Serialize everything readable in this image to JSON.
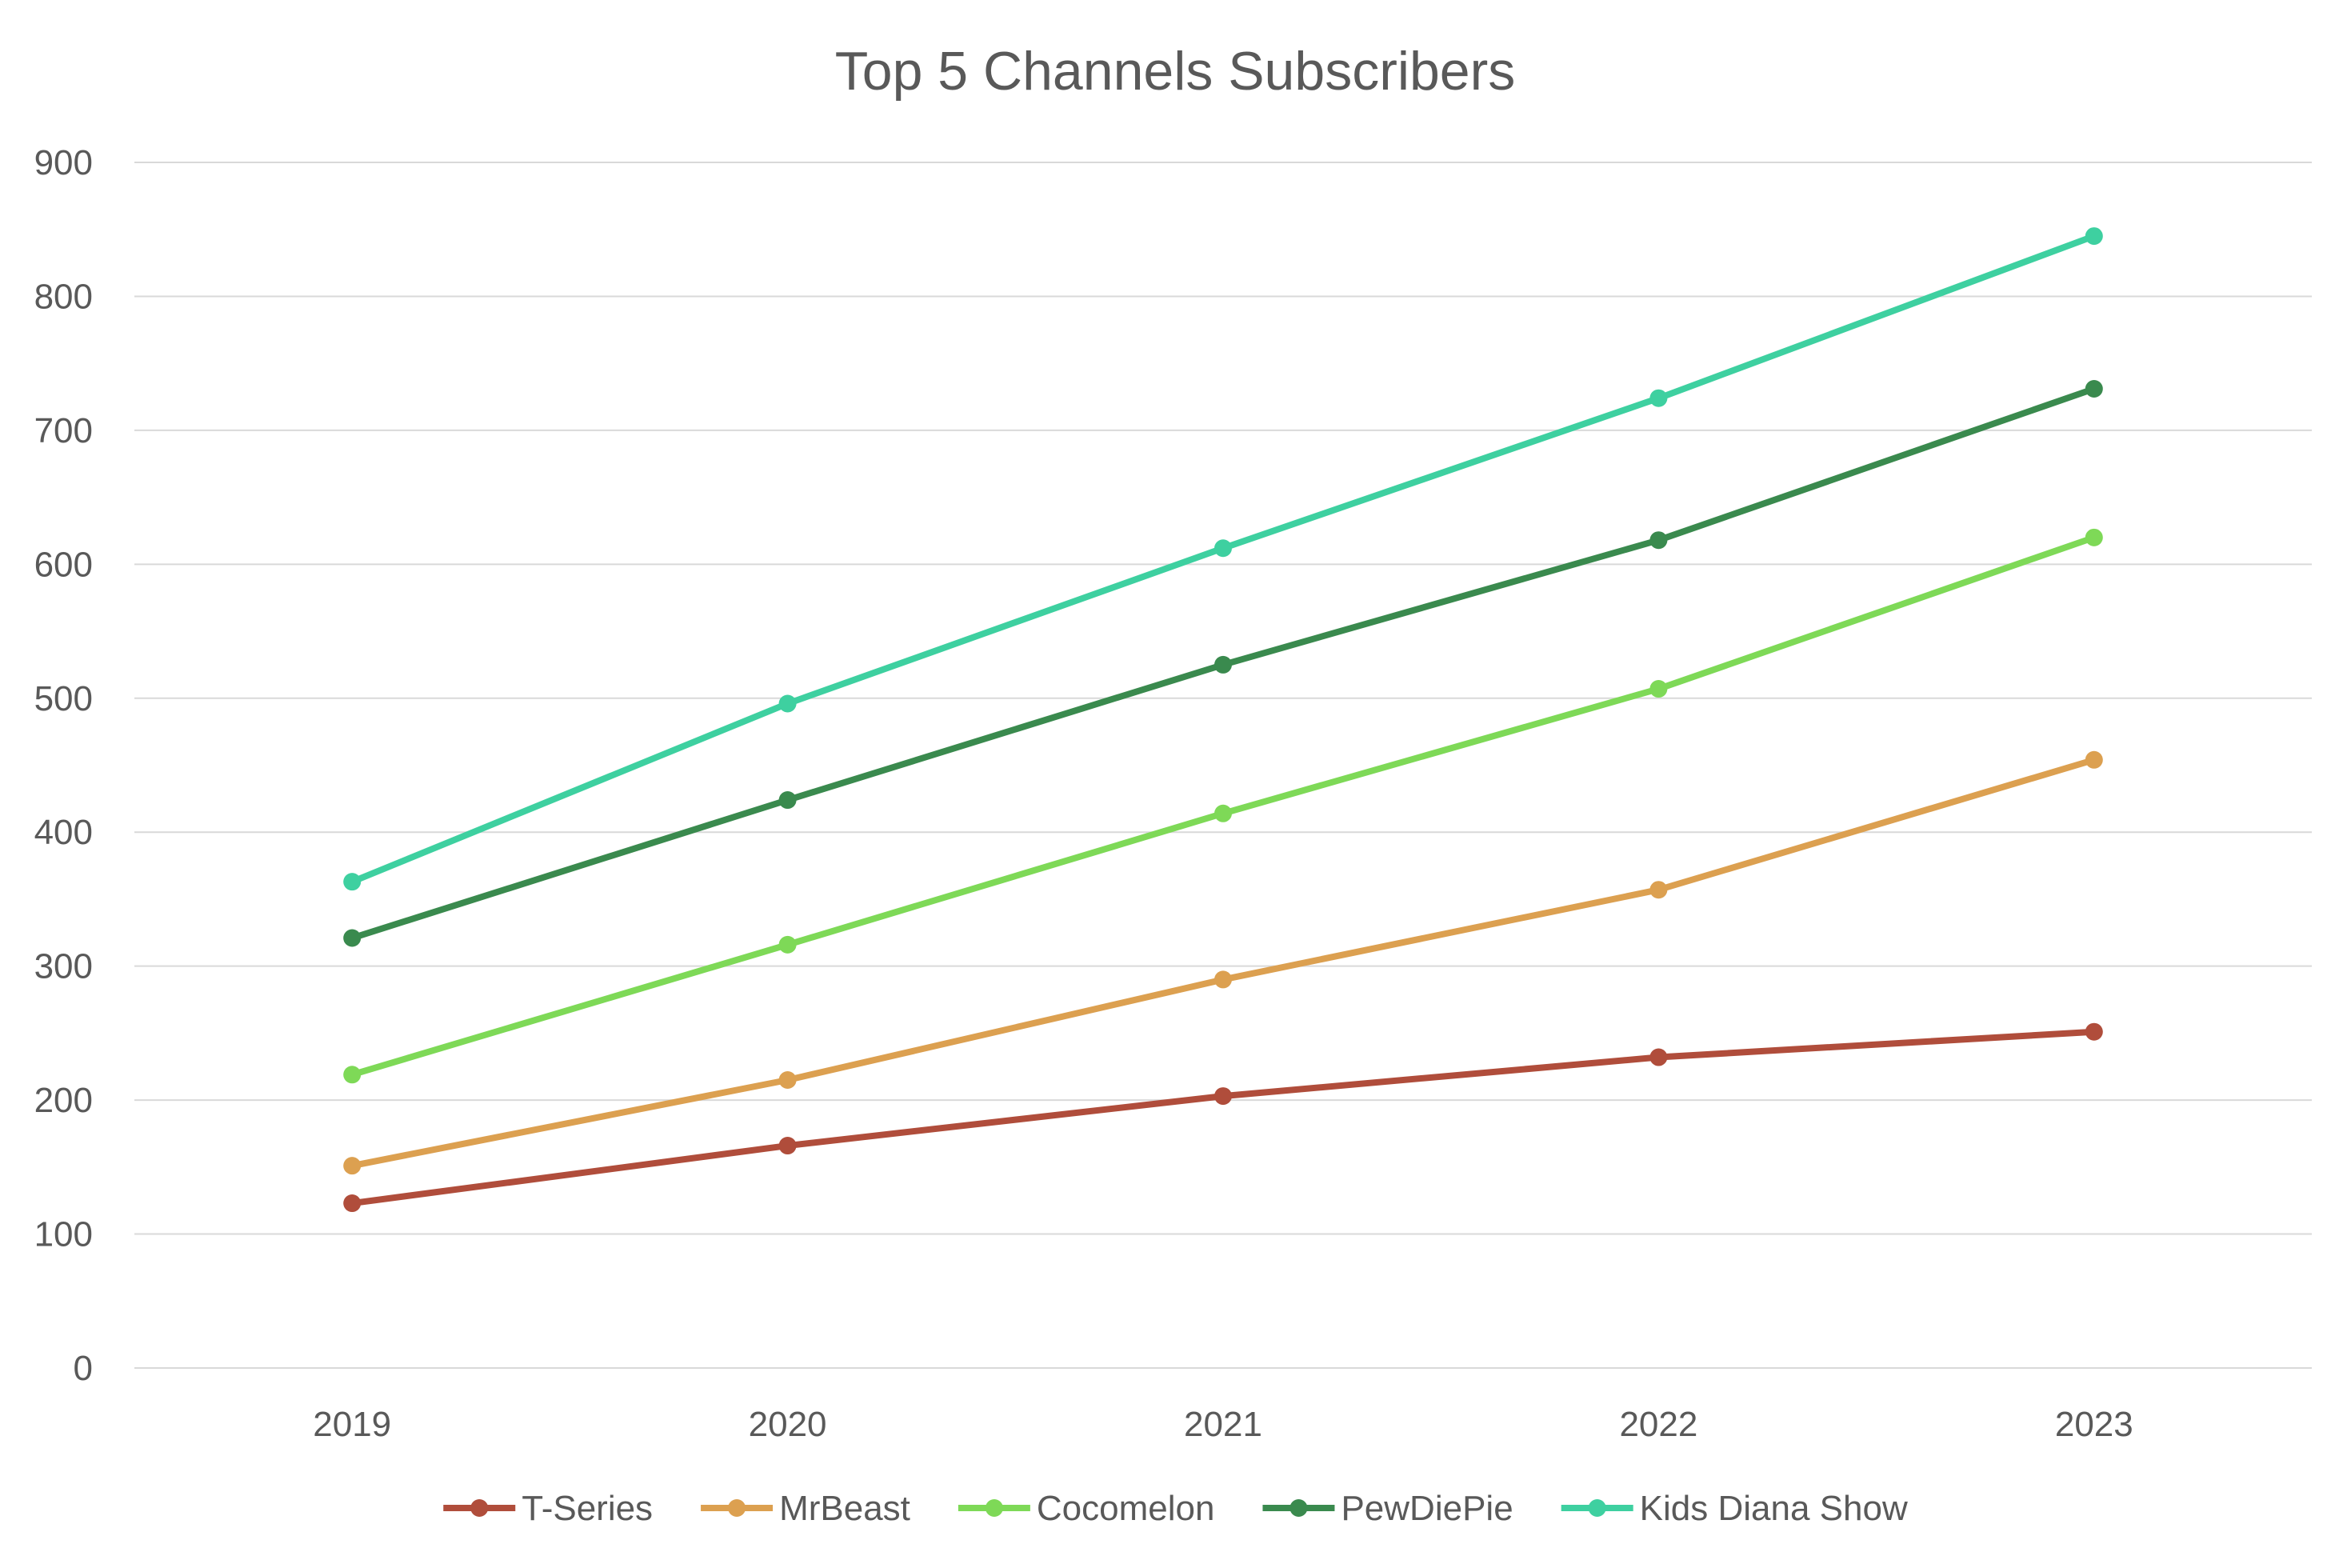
{
  "chart_data": {
    "type": "line",
    "title": "Top 5 Channels Subscribers",
    "xlabel": "",
    "ylabel": "",
    "categories": [
      "2019",
      "2020",
      "2021",
      "2022",
      "2023"
    ],
    "ylim": [
      0,
      900
    ],
    "yticks": [
      0,
      100,
      200,
      300,
      400,
      500,
      600,
      700,
      800,
      900
    ],
    "grid": true,
    "legend_position": "bottom",
    "series": [
      {
        "name": "T-Series",
        "color": "#b04d3b",
        "values": [
          123,
          166,
          203,
          232,
          251
        ]
      },
      {
        "name": "MrBeast",
        "color": "#dca050",
        "values": [
          151,
          215,
          290,
          357,
          454
        ]
      },
      {
        "name": "Cocomelon",
        "color": "#7ed957",
        "values": [
          219,
          316,
          414,
          507,
          620
        ]
      },
      {
        "name": "PewDiePie",
        "color": "#3a8a4e",
        "values": [
          321,
          424,
          525,
          618,
          731
        ]
      },
      {
        "name": "Kids Diana Show",
        "color": "#3ed0a0",
        "values": [
          363,
          496,
          612,
          724,
          845
        ]
      }
    ]
  }
}
